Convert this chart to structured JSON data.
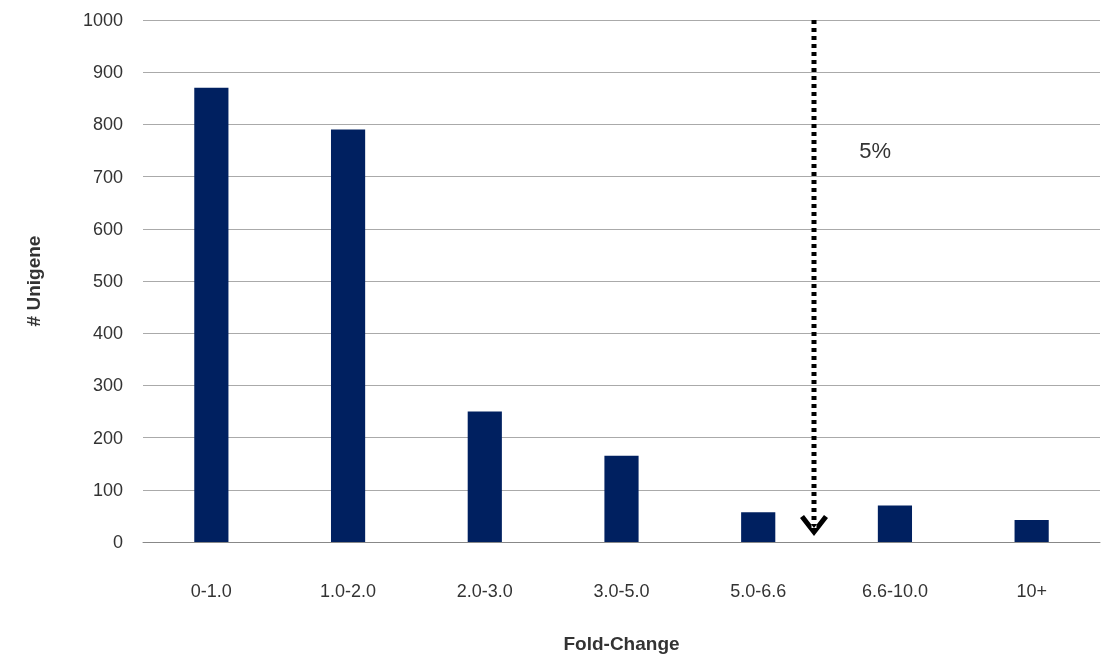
{
  "chart_data": {
    "type": "bar",
    "xlabel": "Fold-Change",
    "ylabel": "# Unigene",
    "categories": [
      "0-1.0",
      "1.0-2.0",
      "2.0-3.0",
      "3.0-5.0",
      "5.0-6.6",
      "6.6-10.0",
      "10+"
    ],
    "values": [
      870,
      790,
      250,
      165,
      57,
      70,
      42
    ],
    "color": "#002060",
    "ylim": [
      0,
      1000
    ],
    "yticks": [
      0,
      100,
      200,
      300,
      400,
      500,
      600,
      700,
      800,
      900,
      1000
    ],
    "grid": "y",
    "annotations": [
      "5%"
    ]
  }
}
